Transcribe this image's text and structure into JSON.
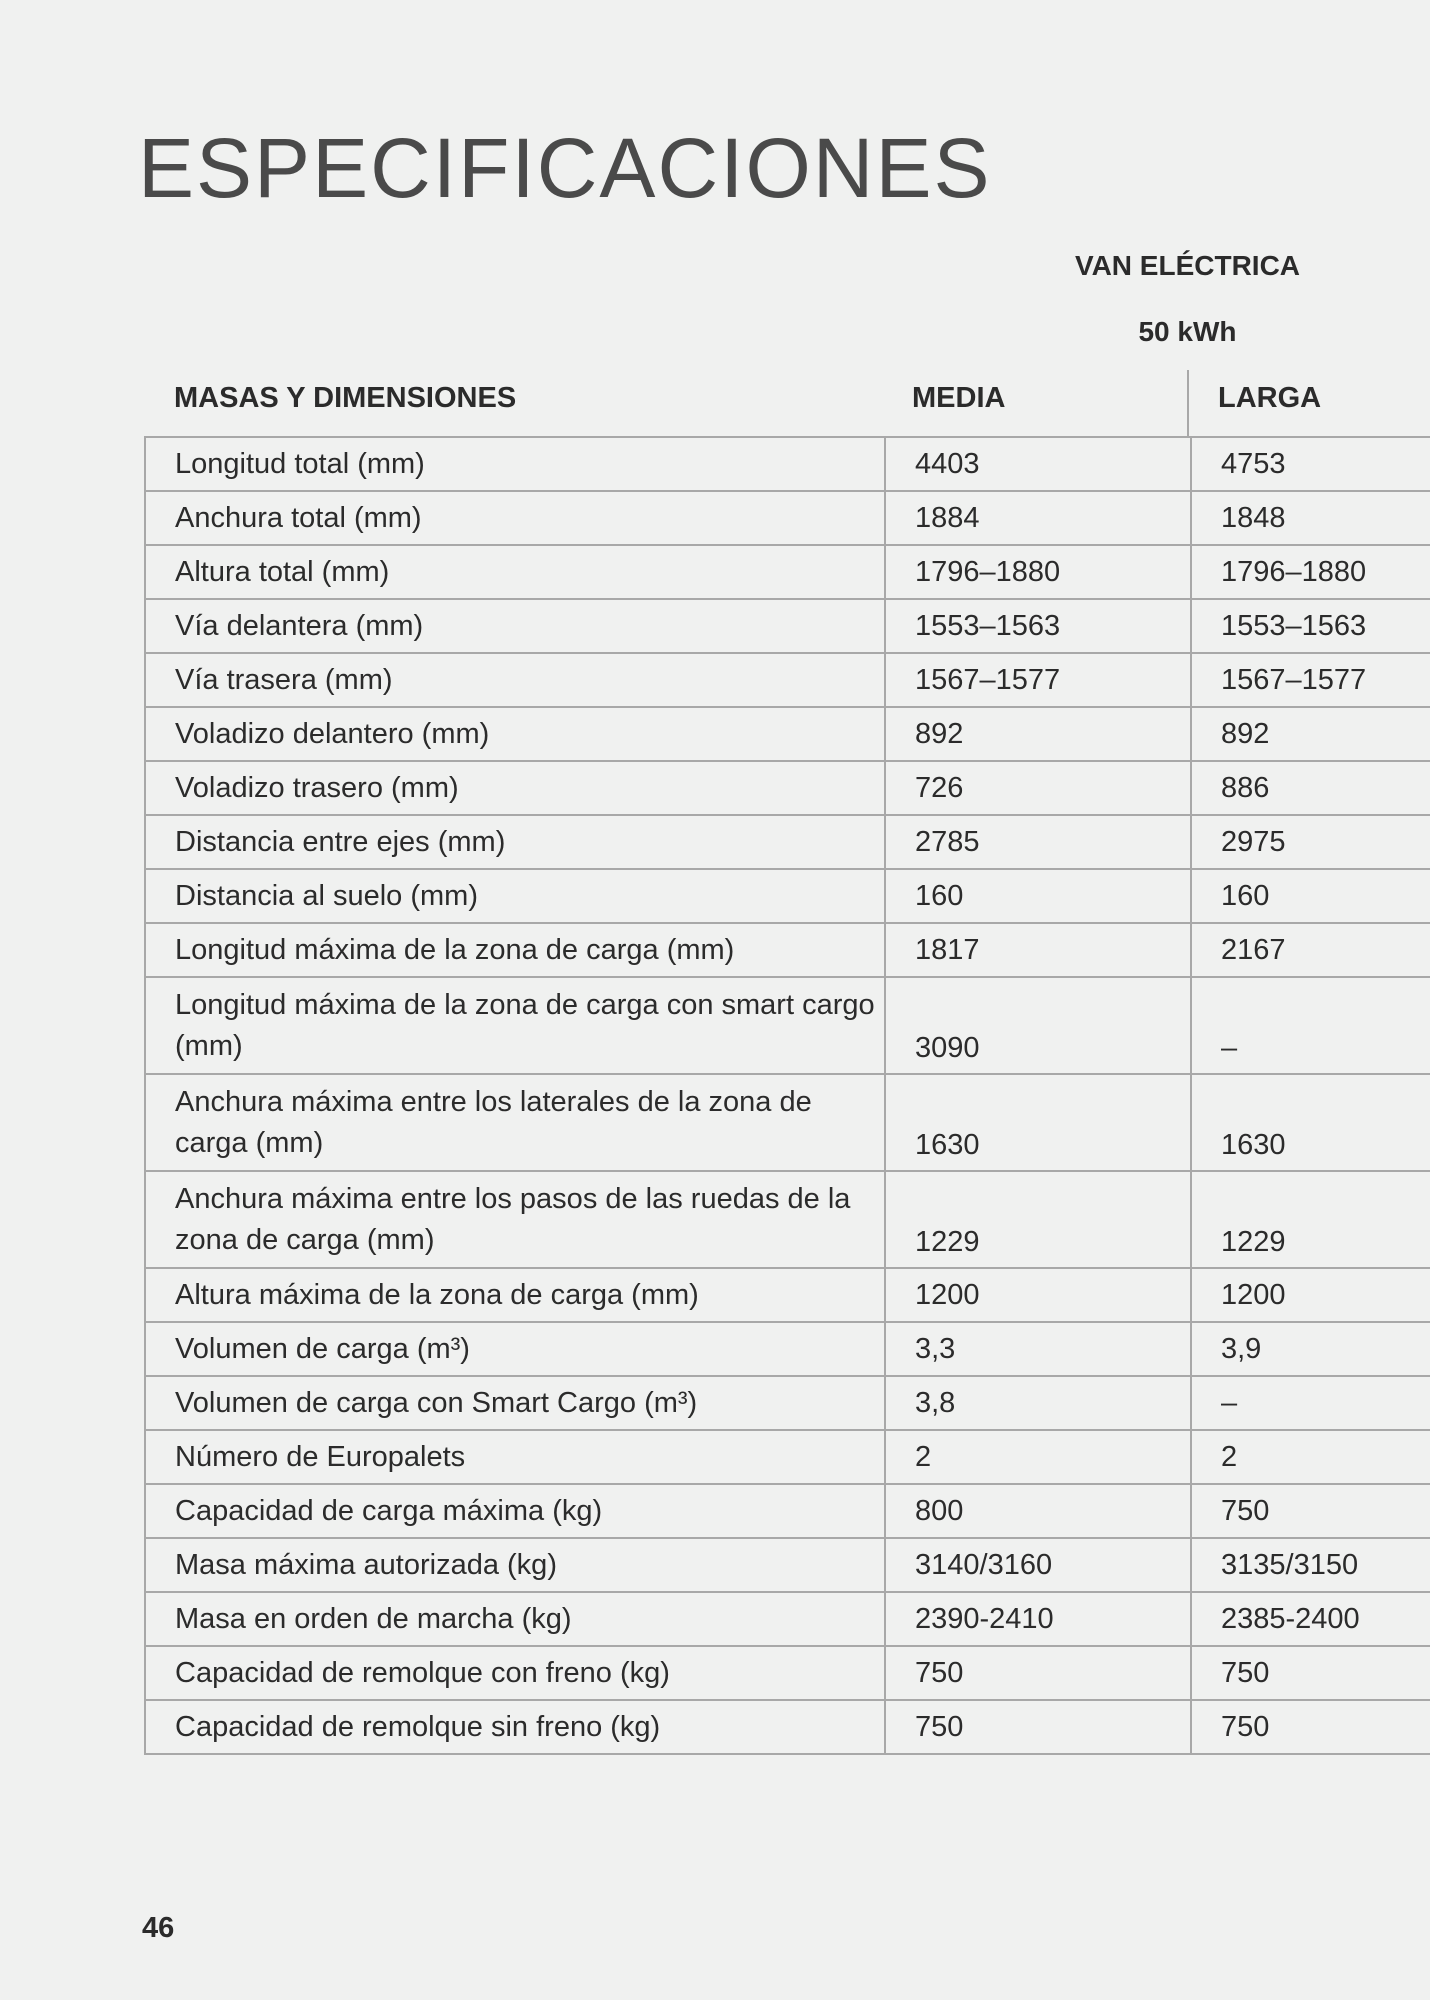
{
  "title": "ESPECIFICACIONES",
  "group_header": {
    "model": "VAN ELÉCTRICA",
    "battery": "50 kWh"
  },
  "table": {
    "section_label": "MASAS Y DIMENSIONES",
    "columns": [
      "MEDIA",
      "LARGA"
    ],
    "rows": [
      {
        "label": "Longitud total (mm)",
        "media": "4403",
        "larga": "4753"
      },
      {
        "label": "Anchura total (mm)",
        "media": "1884",
        "larga": "1848"
      },
      {
        "label": "Altura total (mm)",
        "media": "1796–1880",
        "larga": "1796–1880"
      },
      {
        "label": "Vía delantera (mm)",
        "media": "1553–1563",
        "larga": "1553–1563"
      },
      {
        "label": "Vía trasera (mm)",
        "media": "1567–1577",
        "larga": "1567–1577"
      },
      {
        "label": "Voladizo delantero (mm)",
        "media": "892",
        "larga": "892"
      },
      {
        "label": "Voladizo trasero (mm)",
        "media": "726",
        "larga": "886"
      },
      {
        "label": "Distancia entre ejes (mm)",
        "media": "2785",
        "larga": "2975"
      },
      {
        "label": "Distancia al suelo (mm)",
        "media": "160",
        "larga": "160"
      },
      {
        "label": "Longitud máxima de la zona de carga (mm)",
        "media": "1817",
        "larga": "2167"
      },
      {
        "label": "Longitud máxima de la zona de carga con smart cargo (mm)",
        "media": "3090",
        "larga": "–",
        "wrap": true
      },
      {
        "label": "Anchura máxima entre los laterales de la zona de carga (mm)",
        "media": "1630",
        "larga": "1630",
        "wrap": true
      },
      {
        "label": "Anchura máxima entre los pasos de las ruedas de la zona de carga (mm)",
        "media": "1229",
        "larga": "1229",
        "wrap": true
      },
      {
        "label": "Altura máxima de la zona de carga (mm)",
        "media": "1200",
        "larga": "1200"
      },
      {
        "label": "Volumen de carga (m³)",
        "media": "3,3",
        "larga": "3,9"
      },
      {
        "label": "Volumen de carga con Smart Cargo (m³)",
        "media": "3,8",
        "larga": "–"
      },
      {
        "label": "Número de Europalets",
        "media": "2",
        "larga": "2"
      },
      {
        "label": "Capacidad de carga máxima (kg)",
        "media": "800",
        "larga": "750"
      },
      {
        "label": "Masa máxima autorizada (kg)",
        "media": "3140/3160",
        "larga": "3135/3150"
      },
      {
        "label": "Masa en orden de marcha (kg)",
        "media": "2390-2410",
        "larga": "2385-2400"
      },
      {
        "label": "Capacidad de remolque con freno (kg)",
        "media": "750",
        "larga": "750"
      },
      {
        "label": "Capacidad de remolque sin freno (kg)",
        "media": "750",
        "larga": "750"
      }
    ]
  },
  "page_number": "46"
}
